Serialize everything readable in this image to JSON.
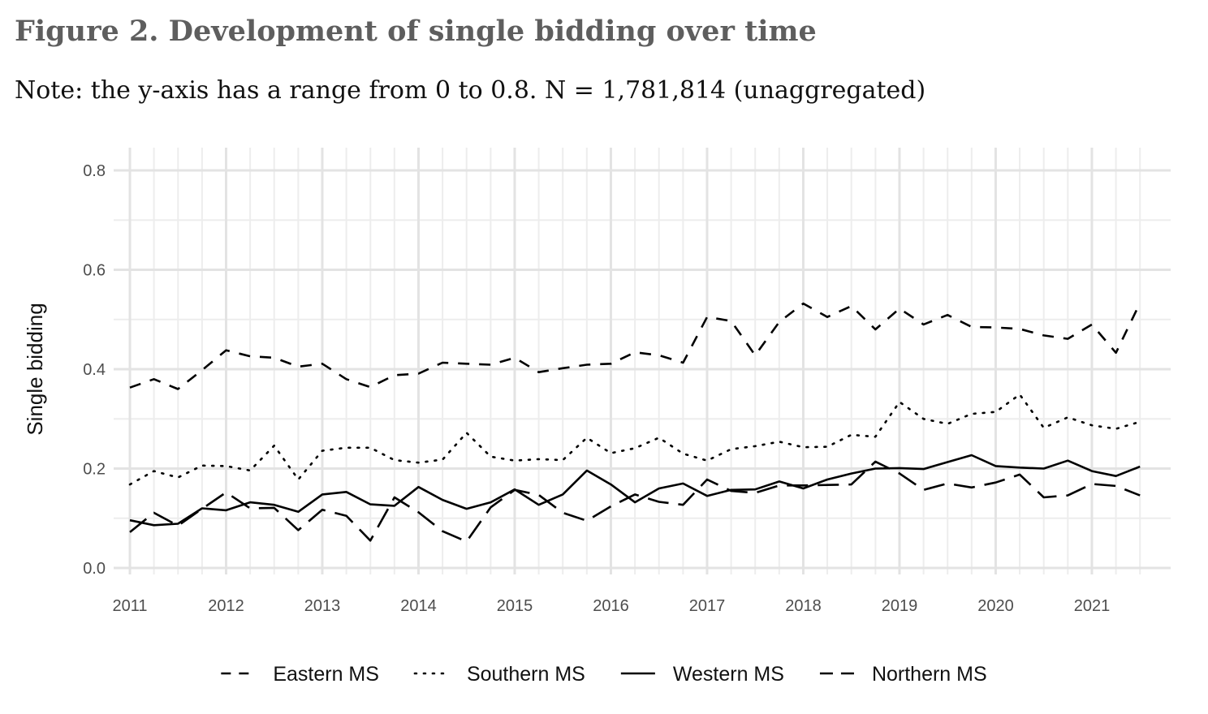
{
  "title": "Figure 2. Development of single bidding over time",
  "note": "Note: the y-axis has a range from 0 to 0.8. N = 1,781,814 (unaggregated)",
  "chart_data": {
    "type": "line",
    "ylabel": "Single bidding",
    "xlabel": "",
    "ylim": [
      0,
      0.8
    ],
    "xlim": [
      2011,
      2021.667
    ],
    "yticks": [
      0.0,
      0.2,
      0.4,
      0.6,
      0.8
    ],
    "ytick_labels": [
      "0.0",
      "0.2",
      "0.4",
      "0.6",
      "0.8"
    ],
    "xticks": [
      2011,
      2012,
      2013,
      2014,
      2015,
      2016,
      2017,
      2018,
      2019,
      2020,
      2021
    ],
    "xtick_labels": [
      "2011",
      "2012",
      "2013",
      "2014",
      "2015",
      "2016",
      "2017",
      "2018",
      "2019",
      "2020",
      "2021"
    ],
    "grid": true,
    "legend_position": "bottom",
    "x_step": 0.25,
    "series": [
      {
        "name": "Eastern MS",
        "dash": "dashed",
        "values": [
          0.363,
          0.38,
          0.36,
          0.398,
          0.438,
          0.426,
          0.423,
          0.405,
          0.411,
          0.38,
          0.364,
          0.388,
          0.391,
          0.413,
          0.411,
          0.409,
          0.423,
          0.394,
          0.402,
          0.409,
          0.411,
          0.434,
          0.428,
          0.413,
          0.505,
          0.497,
          0.428,
          0.495,
          0.532,
          0.505,
          0.527,
          0.48,
          0.522,
          0.49,
          0.509,
          0.485,
          0.484,
          0.481,
          0.468,
          0.461,
          0.49,
          0.433,
          0.533
        ]
      },
      {
        "name": "Southern MS",
        "dash": "dotted",
        "values": [
          0.168,
          0.195,
          0.182,
          0.206,
          0.205,
          0.196,
          0.246,
          0.178,
          0.236,
          0.242,
          0.242,
          0.217,
          0.212,
          0.218,
          0.272,
          0.224,
          0.216,
          0.219,
          0.217,
          0.262,
          0.231,
          0.241,
          0.262,
          0.23,
          0.216,
          0.239,
          0.245,
          0.254,
          0.243,
          0.244,
          0.268,
          0.264,
          0.334,
          0.3,
          0.29,
          0.31,
          0.314,
          0.349,
          0.282,
          0.303,
          0.287,
          0.28,
          0.294
        ]
      },
      {
        "name": "Western MS",
        "dash": "solid",
        "values": [
          0.096,
          0.086,
          0.089,
          0.12,
          0.116,
          0.132,
          0.127,
          0.113,
          0.148,
          0.153,
          0.128,
          0.125,
          0.163,
          0.137,
          0.119,
          0.132,
          0.158,
          0.127,
          0.148,
          0.196,
          0.168,
          0.132,
          0.16,
          0.17,
          0.145,
          0.157,
          0.158,
          0.174,
          0.16,
          0.178,
          0.19,
          0.2,
          0.201,
          0.199,
          0.213,
          0.227,
          0.205,
          0.202,
          0.2,
          0.216,
          0.195,
          0.185,
          0.204
        ]
      },
      {
        "name": "Northern MS",
        "dash": "longdash",
        "values": [
          0.072,
          0.111,
          0.085,
          0.119,
          0.152,
          0.12,
          0.121,
          0.076,
          0.117,
          0.105,
          0.055,
          0.142,
          0.112,
          0.074,
          0.053,
          0.122,
          0.157,
          0.147,
          0.111,
          0.095,
          0.124,
          0.148,
          0.133,
          0.127,
          0.178,
          0.155,
          0.151,
          0.166,
          0.166,
          0.167,
          0.168,
          0.214,
          0.19,
          0.157,
          0.17,
          0.162,
          0.172,
          0.188,
          0.142,
          0.146,
          0.169,
          0.165,
          0.146
        ]
      }
    ]
  }
}
